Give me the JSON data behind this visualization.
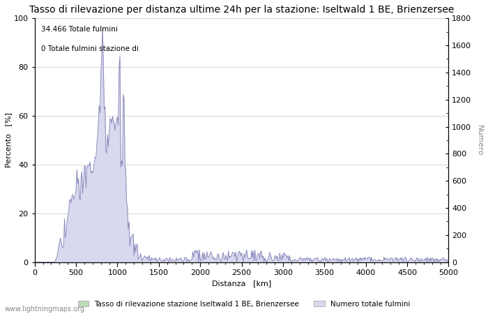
{
  "title": "Tasso di rilevazione per distanza ultime 24h per la stazione: Iseltwald 1 BE, Brienzersee",
  "xlabel": "Distanza   [km]",
  "ylabel_left": "Percento   [%]",
  "ylabel_right": "Numero",
  "annotation_line1": "34.466 Totale fulmini",
  "annotation_line2": "0 Totale fulmini stazione di",
  "xlim": [
    0,
    5000
  ],
  "ylim_left": [
    0,
    100
  ],
  "ylim_right": [
    0,
    1800
  ],
  "xticks": [
    0,
    500,
    1000,
    1500,
    2000,
    2500,
    3000,
    3500,
    4000,
    4500,
    5000
  ],
  "yticks_left": [
    0,
    20,
    40,
    60,
    80,
    100
  ],
  "yticks_right": [
    0,
    200,
    400,
    600,
    800,
    1000,
    1200,
    1400,
    1600,
    1800
  ],
  "legend_label_green": "Tasso di rilevazione stazione Iseltwald 1 BE, Brienzersee",
  "legend_label_blue": "Numero totale fulmini",
  "watermark": "www.lightningmaps.org",
  "line_color": "#8888bb",
  "fill_color_blue": "#d8d8ee",
  "fill_color_green": "#bbddbb",
  "bg_color": "#ffffff",
  "grid_color": "#c8c8c8",
  "title_fontsize": 10,
  "label_fontsize": 8,
  "tick_fontsize": 8,
  "watermark_fontsize": 7,
  "ylabel_right_color": "#888888"
}
